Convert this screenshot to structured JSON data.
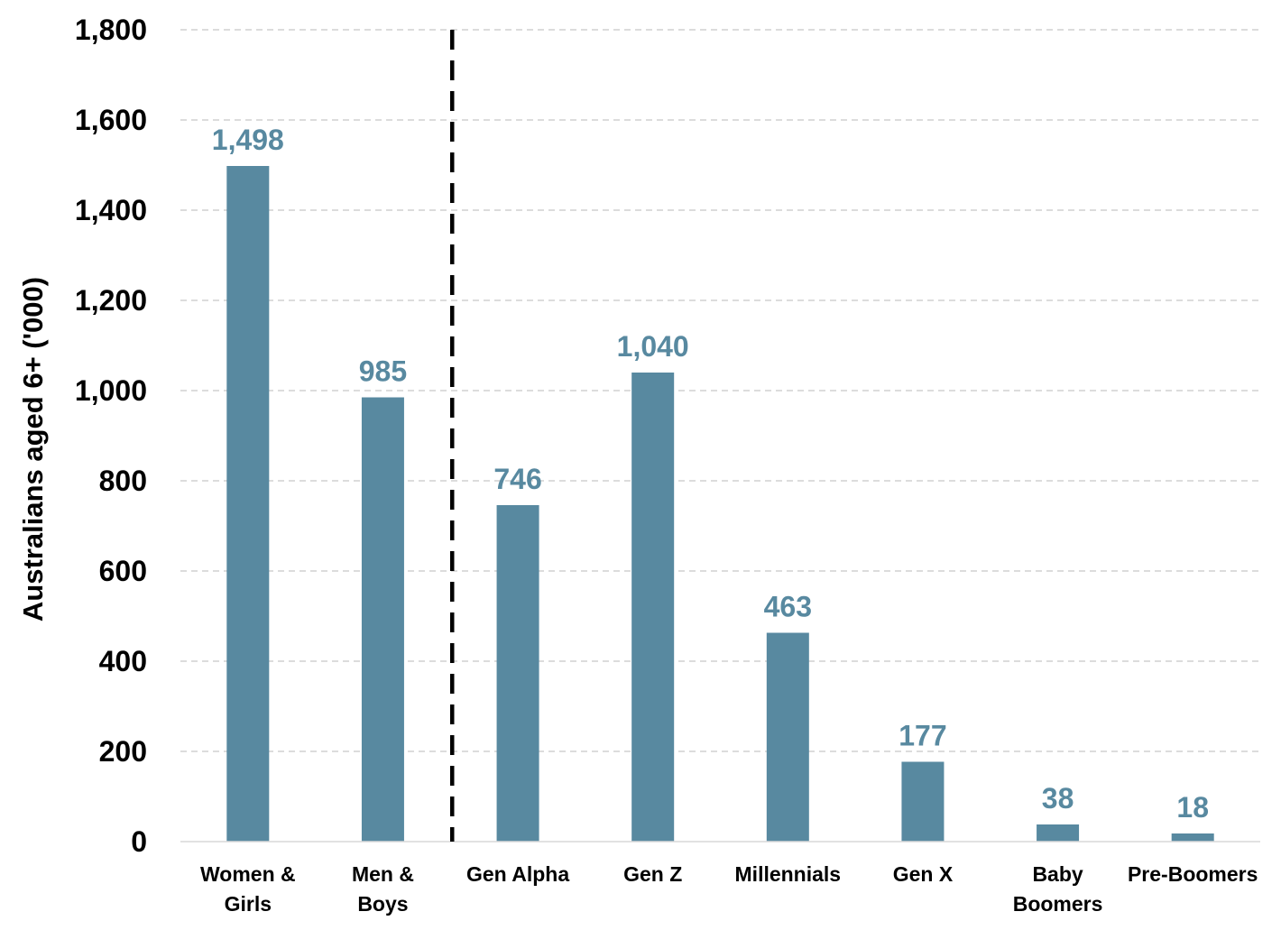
{
  "chart_data": {
    "type": "bar",
    "title": "",
    "xlabel": "",
    "ylabel": "Australians aged 6+ ('000)",
    "ylim": [
      0,
      1800
    ],
    "yticks": [
      0,
      200,
      400,
      600,
      800,
      1000,
      1200,
      1400,
      1600,
      1800
    ],
    "ytick_labels": [
      "0",
      "200",
      "400",
      "600",
      "800",
      "1,000",
      "1,200",
      "1,400",
      "1,600",
      "1,800"
    ],
    "grid": true,
    "legend": "none",
    "categories": [
      [
        "Women &",
        "Girls"
      ],
      [
        "Men &",
        "Boys"
      ],
      [
        "Gen Alpha"
      ],
      [
        "Gen Z"
      ],
      [
        "Millennials"
      ],
      [
        "Gen X"
      ],
      [
        "Baby",
        "Boomers"
      ],
      [
        "Pre-Boomers"
      ]
    ],
    "values": [
      1498,
      985,
      746,
      1040,
      463,
      177,
      38,
      18
    ],
    "data_labels": [
      "1,498",
      "985",
      "746",
      "1,040",
      "463",
      "177",
      "38",
      "18"
    ],
    "divider_after_category": 2,
    "bar_color": "#5889a0",
    "label_color": "#5889a0",
    "grid_color": "#d0d0d0"
  }
}
